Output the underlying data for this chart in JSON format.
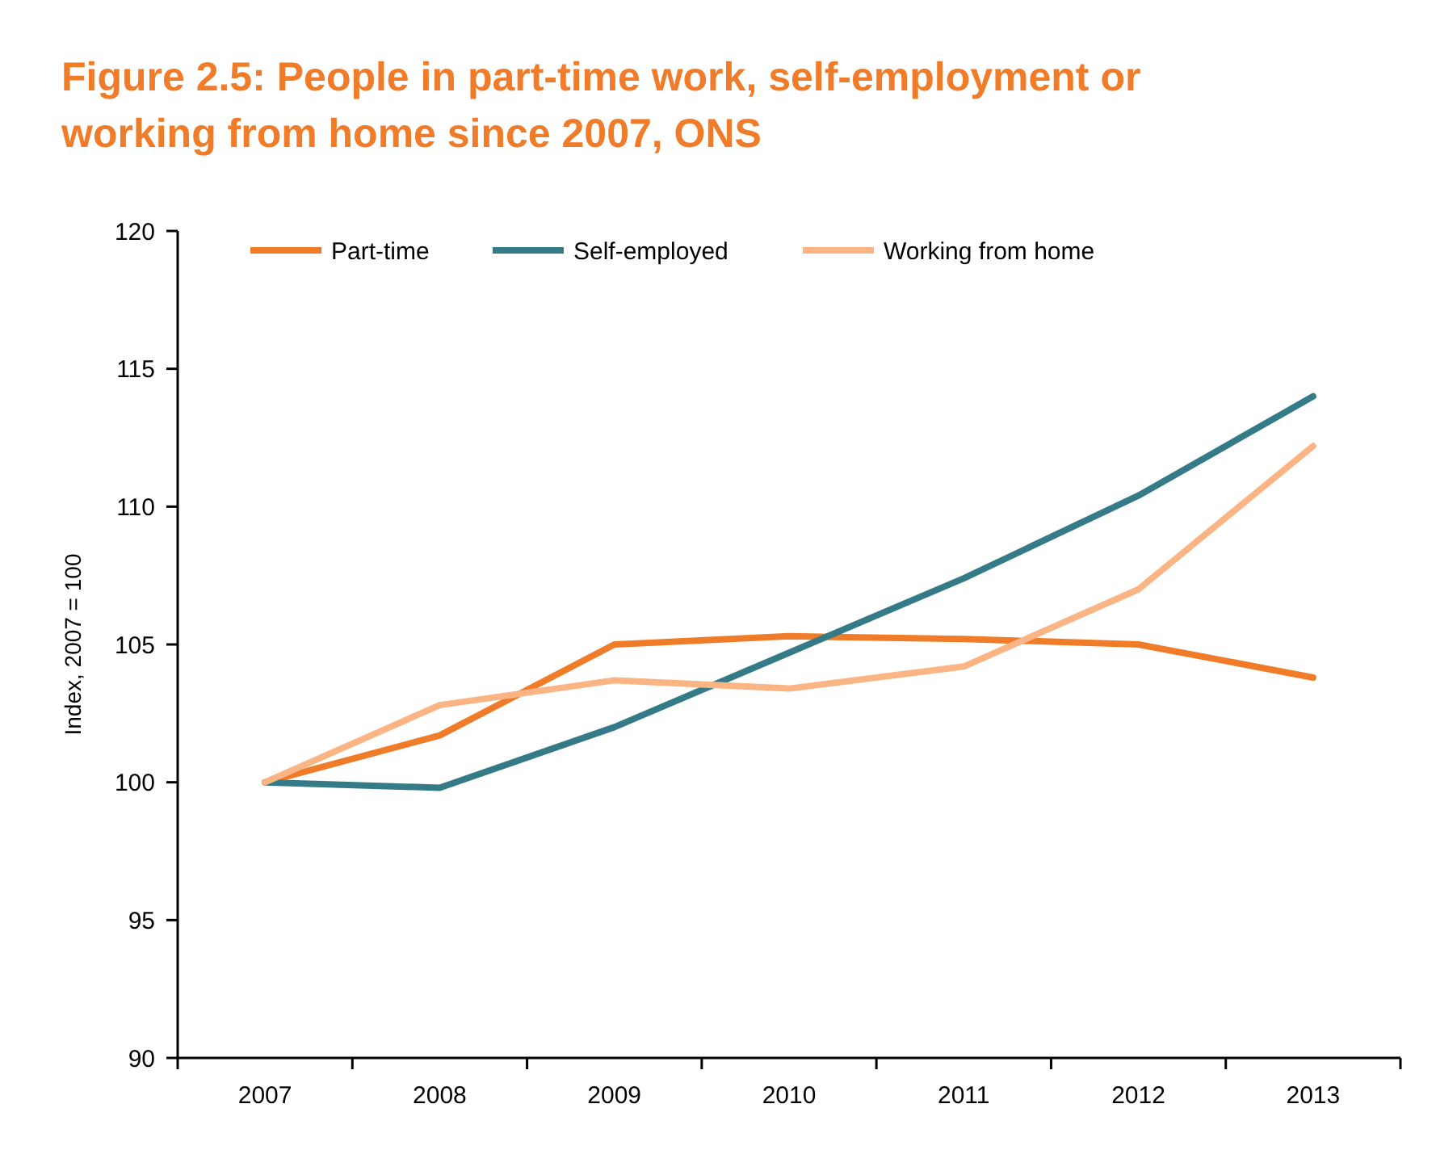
{
  "chart_data": {
    "type": "line",
    "title": "Figure 2.5: People in part-time work, self-employment or working from home since 2007, ONS",
    "ylabel": "Index, 2007 = 100",
    "categories": [
      "2007",
      "2008",
      "2009",
      "2010",
      "2011",
      "2012",
      "2013"
    ],
    "series": [
      {
        "name": "Part-time",
        "color": "#f07c2a",
        "values": [
          100,
          101.7,
          105.0,
          105.3,
          105.2,
          105.0,
          103.8
        ]
      },
      {
        "name": "Self-employed",
        "color": "#357b87",
        "values": [
          100,
          99.8,
          102.0,
          104.7,
          107.4,
          110.4,
          114.0
        ]
      },
      {
        "name": "Working from home",
        "color": "#fbb585",
        "values": [
          100,
          102.8,
          103.7,
          103.4,
          104.2,
          107.0,
          112.2
        ]
      }
    ],
    "ylim": [
      90,
      120
    ],
    "yticks": [
      90,
      95,
      100,
      105,
      110,
      115,
      120
    ],
    "grid": false,
    "legend": "top",
    "marker": "none",
    "line_style": "solid"
  }
}
